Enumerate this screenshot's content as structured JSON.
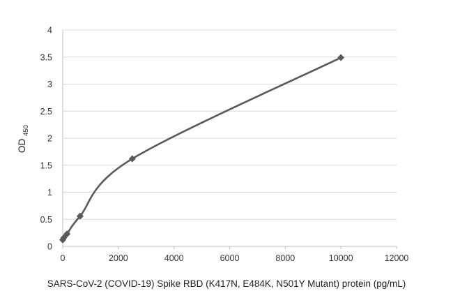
{
  "chart_data": {
    "type": "scatter",
    "xlabel": "SARS-CoV-2 (COVID-19) Spike RBD (K417N, E484K, N501Y Mutant) protein (pg/mL)",
    "ylabel": "OD",
    "ylabel_subscript": "450",
    "xlim": [
      0,
      12000
    ],
    "ylim": [
      0,
      4
    ],
    "xticks": [
      "0",
      "2000",
      "4000",
      "6000",
      "8000",
      "10000",
      "12000"
    ],
    "yticks": [
      "0",
      "0.5",
      "1",
      "1.5",
      "2",
      "2.5",
      "3",
      "3.5",
      "4"
    ],
    "grid": "horizontal",
    "marker": "diamond",
    "series_color": "#595959",
    "gridline_color": "#d9d9d9",
    "series": [
      {
        "x": [
          0,
          39,
          156,
          625,
          2500,
          10000
        ],
        "y": [
          0.12,
          0.16,
          0.23,
          0.56,
          1.62,
          3.49
        ]
      }
    ]
  }
}
